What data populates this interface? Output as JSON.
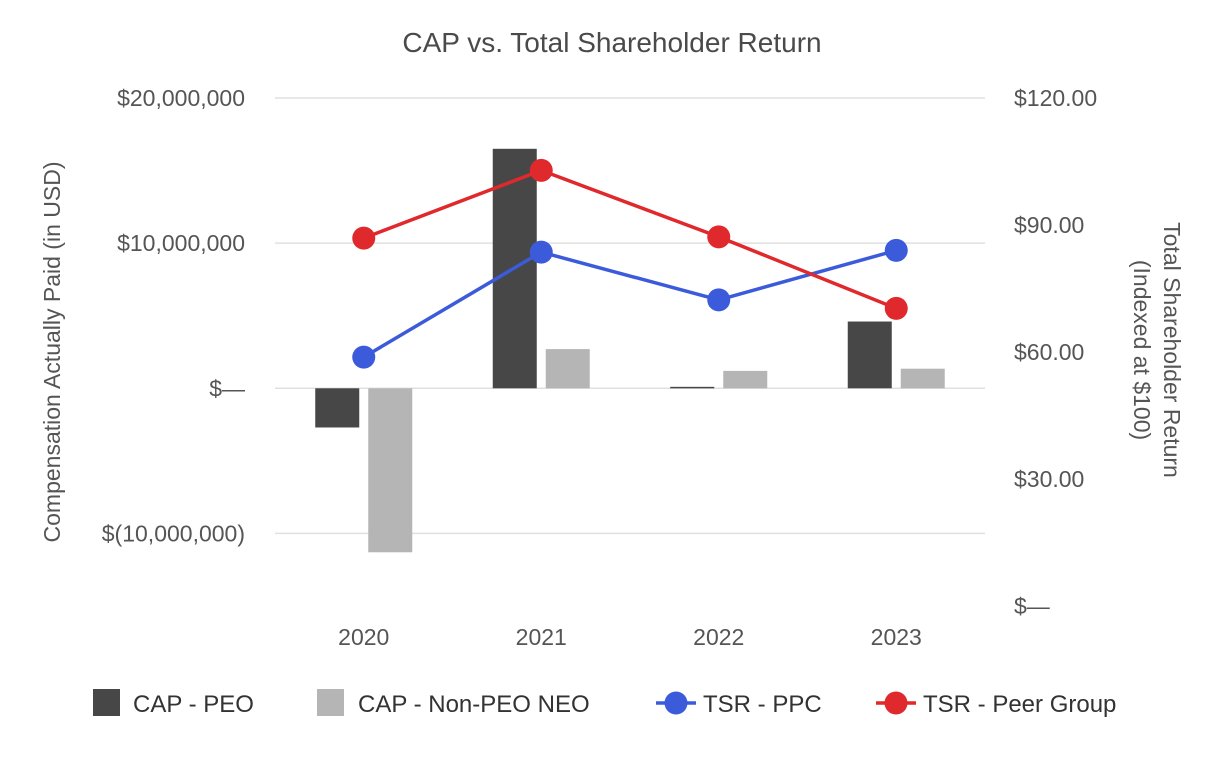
{
  "chart_data": {
    "type": "bar+line",
    "title": "CAP vs. Total Shareholder Return",
    "categories": [
      "2020",
      "2021",
      "2022",
      "2023"
    ],
    "left_axis": {
      "label": "Compensation Actually Paid (in USD)",
      "ylim": [
        -15000000,
        20000000
      ],
      "ticks": [
        20000000,
        10000000,
        0,
        -10000000
      ],
      "tick_labels": [
        "$20,000,000",
        "$10,000,000",
        "$—",
        "$(10,000,000)"
      ]
    },
    "right_axis": {
      "label_line1": "Total Shareholder Return",
      "label_line2": "(Indexed at $100)",
      "ylim": [
        0,
        120
      ],
      "ticks": [
        120,
        90,
        60,
        30,
        0
      ],
      "tick_labels": [
        "$120.00",
        "$90.00",
        "$60.00",
        "$30.00",
        "$—"
      ]
    },
    "bar_series": [
      {
        "name": "CAP - PEO",
        "color": "#474747",
        "values": [
          -2700000,
          16500000,
          100000,
          4600000
        ]
      },
      {
        "name": "CAP - Non-PEO NEO",
        "color": "#b5b5b5",
        "values": [
          -11300000,
          2700000,
          1200000,
          1350000
        ]
      }
    ],
    "line_series": [
      {
        "name": "TSR - PPC",
        "color": "#3b5bdb",
        "values": [
          58.8,
          83.6,
          72.3,
          84.0
        ]
      },
      {
        "name": "TSR - Peer Group",
        "color": "#e0292c",
        "values": [
          86.9,
          102.9,
          87.2,
          70.3
        ]
      }
    ],
    "legend": [
      "CAP - PEO",
      "CAP - Non-PEO NEO",
      "TSR - PPC",
      "TSR - Peer Group"
    ],
    "legend_position": "bottom"
  }
}
